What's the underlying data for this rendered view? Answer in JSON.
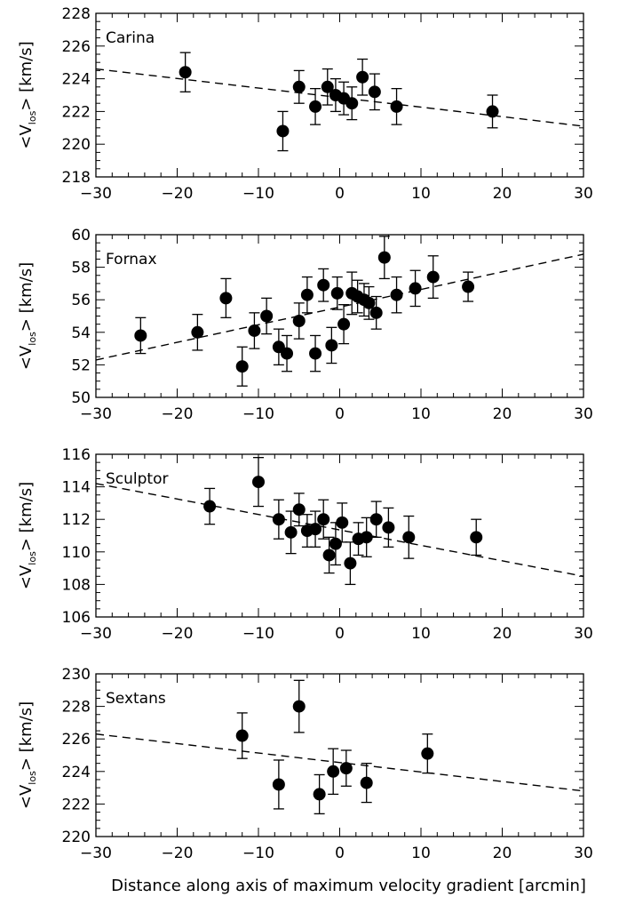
{
  "figure": {
    "xlabel": "Distance along axis of maximum velocity gradient [arcmin]"
  },
  "chart_data": [
    {
      "type": "scatter",
      "panel_label": "Carina",
      "ylabel_main": "<V",
      "ylabel_sub": "los",
      "ylabel_tail": "> [km/s]",
      "xlim": [
        -30,
        30
      ],
      "ylim": [
        218,
        228
      ],
      "xticks": [
        -30,
        -20,
        -10,
        0,
        10,
        20,
        30
      ],
      "yticks": [
        218,
        220,
        222,
        224,
        226,
        228
      ],
      "points": [
        {
          "x": -19.0,
          "y": 224.4,
          "err": 1.2
        },
        {
          "x": -7.0,
          "y": 220.8,
          "err": 1.2
        },
        {
          "x": -5.0,
          "y": 223.5,
          "err": 1.0
        },
        {
          "x": -3.0,
          "y": 222.3,
          "err": 1.1
        },
        {
          "x": -1.5,
          "y": 223.5,
          "err": 1.1
        },
        {
          "x": -0.5,
          "y": 223.0,
          "err": 1.0
        },
        {
          "x": 0.5,
          "y": 222.8,
          "err": 1.0
        },
        {
          "x": 1.5,
          "y": 222.5,
          "err": 1.0
        },
        {
          "x": 2.8,
          "y": 224.1,
          "err": 1.1
        },
        {
          "x": 4.3,
          "y": 223.2,
          "err": 1.1
        },
        {
          "x": 7.0,
          "y": 222.3,
          "err": 1.1
        },
        {
          "x": 18.8,
          "y": 222.0,
          "err": 1.0
        }
      ],
      "fit": {
        "x": [
          -30,
          30
        ],
        "y": [
          224.6,
          221.1
        ]
      }
    },
    {
      "type": "scatter",
      "panel_label": "Fornax",
      "ylabel_main": "<V",
      "ylabel_sub": "los",
      "ylabel_tail": "> [km/s]",
      "xlim": [
        -30,
        30
      ],
      "ylim": [
        50,
        60
      ],
      "xticks": [
        -30,
        -20,
        -10,
        0,
        10,
        20,
        30
      ],
      "yticks": [
        50,
        52,
        54,
        56,
        58,
        60
      ],
      "points": [
        {
          "x": -24.5,
          "y": 53.8,
          "err": 1.1
        },
        {
          "x": -17.5,
          "y": 54.0,
          "err": 1.1
        },
        {
          "x": -14.0,
          "y": 56.1,
          "err": 1.2
        },
        {
          "x": -12.0,
          "y": 51.9,
          "err": 1.2
        },
        {
          "x": -10.5,
          "y": 54.1,
          "err": 1.1
        },
        {
          "x": -9.0,
          "y": 55.0,
          "err": 1.1
        },
        {
          "x": -7.5,
          "y": 53.1,
          "err": 1.1
        },
        {
          "x": -6.5,
          "y": 52.7,
          "err": 1.1
        },
        {
          "x": -5.0,
          "y": 54.7,
          "err": 1.1
        },
        {
          "x": -4.0,
          "y": 56.3,
          "err": 1.1
        },
        {
          "x": -3.0,
          "y": 52.7,
          "err": 1.1
        },
        {
          "x": -2.0,
          "y": 56.9,
          "err": 1.0
        },
        {
          "x": -1.0,
          "y": 53.2,
          "err": 1.1
        },
        {
          "x": -0.3,
          "y": 56.4,
          "err": 1.0
        },
        {
          "x": 0.5,
          "y": 54.5,
          "err": 1.2
        },
        {
          "x": 1.5,
          "y": 56.4,
          "err": 1.3
        },
        {
          "x": 2.2,
          "y": 56.2,
          "err": 1.0
        },
        {
          "x": 3.0,
          "y": 56.0,
          "err": 1.0
        },
        {
          "x": 3.6,
          "y": 55.8,
          "err": 1.0
        },
        {
          "x": 4.5,
          "y": 55.2,
          "err": 1.0
        },
        {
          "x": 5.5,
          "y": 58.6,
          "err": 1.3
        },
        {
          "x": 7.0,
          "y": 56.3,
          "err": 1.1
        },
        {
          "x": 9.3,
          "y": 56.7,
          "err": 1.1
        },
        {
          "x": 11.5,
          "y": 57.4,
          "err": 1.3
        },
        {
          "x": 15.8,
          "y": 56.8,
          "err": 0.9
        }
      ],
      "fit": {
        "x": [
          -30,
          30
        ],
        "y": [
          52.3,
          58.8
        ]
      }
    },
    {
      "type": "scatter",
      "panel_label": "Sculptor",
      "ylabel_main": "<V",
      "ylabel_sub": "los",
      "ylabel_tail": "> [km/s]",
      "xlim": [
        -30,
        30
      ],
      "ylim": [
        106,
        116
      ],
      "xticks": [
        -30,
        -20,
        -10,
        0,
        10,
        20,
        30
      ],
      "yticks": [
        106,
        108,
        110,
        112,
        114,
        116
      ],
      "points": [
        {
          "x": -16.0,
          "y": 112.8,
          "err": 1.1
        },
        {
          "x": -10.0,
          "y": 114.3,
          "err": 1.5
        },
        {
          "x": -7.5,
          "y": 112.0,
          "err": 1.2
        },
        {
          "x": -6.0,
          "y": 111.2,
          "err": 1.3
        },
        {
          "x": -5.0,
          "y": 112.6,
          "err": 1.0
        },
        {
          "x": -4.0,
          "y": 111.3,
          "err": 1.0
        },
        {
          "x": -3.0,
          "y": 111.4,
          "err": 1.1
        },
        {
          "x": -2.0,
          "y": 112.0,
          "err": 1.2
        },
        {
          "x": -1.3,
          "y": 109.8,
          "err": 1.1
        },
        {
          "x": -0.5,
          "y": 110.5,
          "err": 1.3
        },
        {
          "x": 0.3,
          "y": 111.8,
          "err": 1.2
        },
        {
          "x": 1.3,
          "y": 109.3,
          "err": 1.3
        },
        {
          "x": 2.3,
          "y": 110.8,
          "err": 1.0
        },
        {
          "x": 3.3,
          "y": 110.9,
          "err": 1.2
        },
        {
          "x": 4.5,
          "y": 112.0,
          "err": 1.1
        },
        {
          "x": 6.0,
          "y": 111.5,
          "err": 1.2
        },
        {
          "x": 8.5,
          "y": 110.9,
          "err": 1.3
        },
        {
          "x": 16.8,
          "y": 110.9,
          "err": 1.1
        }
      ],
      "fit": {
        "x": [
          -30,
          30
        ],
        "y": [
          114.2,
          108.5
        ]
      }
    },
    {
      "type": "scatter",
      "panel_label": "Sextans",
      "ylabel_main": "<V",
      "ylabel_sub": "los",
      "ylabel_tail": "> [km/s]",
      "xlim": [
        -30,
        30
      ],
      "ylim": [
        220,
        230
      ],
      "xticks": [
        -30,
        -20,
        -10,
        0,
        10,
        20,
        30
      ],
      "yticks": [
        220,
        222,
        224,
        226,
        228,
        230
      ],
      "points": [
        {
          "x": -12.0,
          "y": 226.2,
          "err": 1.4
        },
        {
          "x": -7.5,
          "y": 223.2,
          "err": 1.5
        },
        {
          "x": -5.0,
          "y": 228.0,
          "err": 1.6
        },
        {
          "x": -2.5,
          "y": 222.6,
          "err": 1.2
        },
        {
          "x": -0.8,
          "y": 224.0,
          "err": 1.4
        },
        {
          "x": 0.8,
          "y": 224.2,
          "err": 1.1
        },
        {
          "x": 3.3,
          "y": 223.3,
          "err": 1.2
        },
        {
          "x": 10.8,
          "y": 225.1,
          "err": 1.2
        }
      ],
      "fit": {
        "x": [
          -30,
          30
        ],
        "y": [
          226.3,
          222.8
        ]
      }
    }
  ]
}
